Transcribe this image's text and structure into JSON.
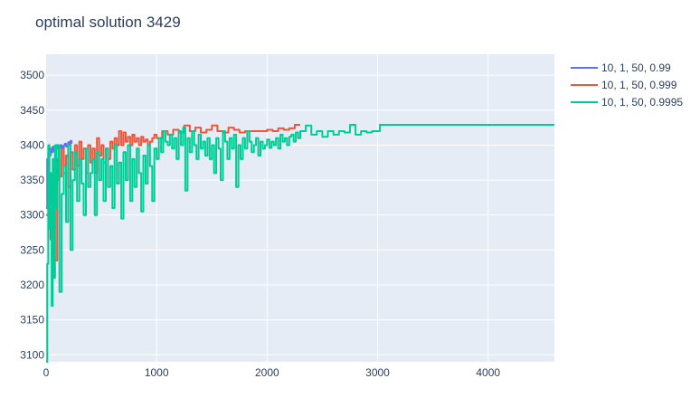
{
  "chart_data": {
    "type": "line",
    "title": "optimal solution 3429",
    "xlabel": "",
    "ylabel": "",
    "xlim": [
      0,
      4600
    ],
    "ylim": [
      3090,
      3530
    ],
    "xticks": [
      0,
      1000,
      2000,
      3000,
      4000
    ],
    "yticks": [
      3100,
      3150,
      3200,
      3250,
      3300,
      3350,
      3400,
      3450,
      3500
    ],
    "grid": true,
    "legend_position": "top-right",
    "series": [
      {
        "name": "10, 1, 50, 0.99",
        "color": "#636efa",
        "x": [
          0,
          10,
          20,
          30,
          40,
          50,
          60,
          70,
          80,
          90,
          100,
          110,
          120,
          130,
          140,
          150,
          160,
          170,
          180,
          190,
          200,
          210,
          220,
          230
        ],
        "y": [
          3310,
          3380,
          3390,
          3385,
          3395,
          3390,
          3398,
          3392,
          3395,
          3400,
          3395,
          3398,
          3396,
          3400,
          3398,
          3395,
          3400,
          3402,
          3398,
          3400,
          3404,
          3400,
          3406,
          3402
        ]
      },
      {
        "name": "10, 1, 50, 0.999",
        "color": "#ef553b",
        "x": [
          0,
          20,
          40,
          60,
          80,
          100,
          120,
          140,
          160,
          180,
          200,
          220,
          240,
          260,
          280,
          300,
          320,
          340,
          360,
          380,
          400,
          420,
          440,
          460,
          480,
          500,
          520,
          540,
          560,
          580,
          600,
          620,
          640,
          660,
          680,
          700,
          720,
          740,
          760,
          780,
          800,
          820,
          840,
          860,
          880,
          900,
          920,
          940,
          960,
          980,
          1000,
          1050,
          1100,
          1150,
          1200,
          1250,
          1300,
          1350,
          1400,
          1450,
          1500,
          1550,
          1600,
          1650,
          1700,
          1750,
          1800,
          1850,
          1900,
          1950,
          2000,
          2050,
          2100,
          2150,
          2200,
          2250,
          2300
        ],
        "y": [
          3300,
          3345,
          3265,
          3340,
          3235,
          3380,
          3355,
          3395,
          3360,
          3385,
          3340,
          3390,
          3365,
          3400,
          3370,
          3405,
          3380,
          3395,
          3360,
          3400,
          3375,
          3395,
          3360,
          3410,
          3385,
          3400,
          3375,
          3395,
          3380,
          3405,
          3395,
          3410,
          3400,
          3420,
          3400,
          3418,
          3405,
          3412,
          3400,
          3415,
          3405,
          3410,
          3400,
          3412,
          3405,
          3408,
          3400,
          3405,
          3410,
          3415,
          3410,
          3420,
          3415,
          3422,
          3418,
          3428,
          3420,
          3425,
          3418,
          3422,
          3428,
          3420,
          3418,
          3425,
          3422,
          3418,
          3420,
          3420,
          3420,
          3420,
          3422,
          3420,
          3424,
          3422,
          3424,
          3429,
          3429
        ]
      },
      {
        "name": "10, 1, 50, 0.9995",
        "color": "#00cc96",
        "x": [
          0,
          10,
          20,
          30,
          40,
          50,
          60,
          70,
          80,
          90,
          100,
          110,
          120,
          140,
          160,
          180,
          200,
          220,
          240,
          260,
          280,
          300,
          320,
          340,
          360,
          380,
          400,
          420,
          440,
          460,
          480,
          500,
          520,
          540,
          560,
          580,
          600,
          620,
          640,
          660,
          680,
          700,
          720,
          740,
          760,
          780,
          800,
          820,
          840,
          860,
          880,
          900,
          920,
          940,
          960,
          980,
          1000,
          1020,
          1040,
          1060,
          1080,
          1100,
          1120,
          1140,
          1160,
          1180,
          1200,
          1220,
          1240,
          1260,
          1280,
          1300,
          1320,
          1340,
          1360,
          1380,
          1400,
          1420,
          1440,
          1460,
          1480,
          1500,
          1520,
          1540,
          1560,
          1580,
          1600,
          1620,
          1640,
          1660,
          1680,
          1700,
          1720,
          1740,
          1760,
          1780,
          1800,
          1820,
          1840,
          1860,
          1880,
          1900,
          1920,
          1940,
          1960,
          1980,
          2000,
          2020,
          2040,
          2060,
          2080,
          2100,
          2120,
          2140,
          2160,
          2180,
          2200,
          2220,
          2240,
          2260,
          2280,
          2300,
          2350,
          2400,
          2450,
          2500,
          2550,
          2600,
          2650,
          2700,
          2750,
          2800,
          2850,
          2900,
          2950,
          3000,
          3020,
          3100,
          3500,
          4000,
          4500,
          4600
        ],
        "y": [
          3090,
          3230,
          3400,
          3280,
          3360,
          3170,
          3380,
          3210,
          3400,
          3310,
          3350,
          3400,
          3190,
          3330,
          3370,
          3290,
          3400,
          3250,
          3350,
          3390,
          3320,
          3380,
          3345,
          3300,
          3395,
          3340,
          3360,
          3380,
          3300,
          3390,
          3350,
          3380,
          3320,
          3395,
          3340,
          3370,
          3310,
          3400,
          3345,
          3375,
          3295,
          3390,
          3350,
          3400,
          3320,
          3380,
          3340,
          3395,
          3360,
          3305,
          3385,
          3345,
          3400,
          3370,
          3320,
          3395,
          3380,
          3410,
          3390,
          3420,
          3405,
          3400,
          3415,
          3395,
          3410,
          3380,
          3420,
          3400,
          3425,
          3335,
          3410,
          3390,
          3420,
          3400,
          3380,
          3415,
          3395,
          3405,
          3385,
          3410,
          3380,
          3400,
          3360,
          3410,
          3395,
          3350,
          3420,
          3405,
          3380,
          3410,
          3395,
          3415,
          3340,
          3400,
          3380,
          3410,
          3395,
          3420,
          3405,
          3390,
          3400,
          3410,
          3385,
          3405,
          3395,
          3400,
          3408,
          3396,
          3405,
          3400,
          3410,
          3395,
          3415,
          3405,
          3410,
          3400,
          3412,
          3415,
          3405,
          3418,
          3410,
          3420,
          3428,
          3415,
          3420,
          3412,
          3420,
          3415,
          3420,
          3418,
          3429,
          3415,
          3420,
          3418,
          3420,
          3420,
          3429,
          3429,
          3429,
          3429,
          3429,
          3429
        ]
      }
    ]
  }
}
